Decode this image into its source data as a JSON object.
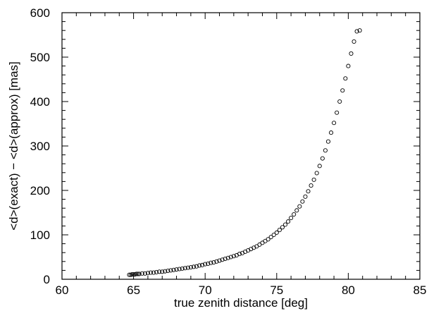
{
  "chart_data": {
    "type": "scatter",
    "title": "",
    "xlabel": "true zenith distance [deg]",
    "ylabel": "<d>(exact) − <d>(approx) [mas]",
    "xlim": [
      60,
      85
    ],
    "ylim": [
      0,
      600
    ],
    "x_ticks": [
      "60",
      "65",
      "70",
      "75",
      "80",
      "85"
    ],
    "y_ticks": [
      "0",
      "100",
      "200",
      "300",
      "400",
      "500",
      "600"
    ],
    "grid": false,
    "legend": "none",
    "marker": "open-circle",
    "color": "#000000",
    "series": [
      {
        "x": [
          64.7,
          64.8,
          64.9,
          65.0,
          65.1,
          65.2,
          65.3,
          65.4,
          65.6,
          65.8,
          66.0,
          66.2,
          66.4,
          66.6,
          66.8,
          67.0,
          67.2,
          67.4,
          67.6,
          67.8,
          68.0,
          68.2,
          68.4,
          68.6,
          68.8,
          69.0,
          69.2,
          69.4,
          69.6,
          69.8,
          70.0,
          70.2,
          70.4,
          70.6,
          70.8,
          71.0,
          71.2,
          71.4,
          71.6,
          71.8,
          72.0,
          72.2,
          72.4,
          72.6,
          72.8,
          73.0,
          73.2,
          73.4,
          73.6,
          73.8,
          74.0,
          74.2,
          74.4,
          74.6,
          74.8,
          75.0,
          75.2,
          75.4,
          75.6,
          75.8,
          76.0,
          76.2,
          76.4,
          76.6,
          76.8,
          77.0,
          77.2,
          77.4,
          77.6,
          77.8,
          78.0,
          78.2,
          78.4,
          78.6,
          78.8,
          79.0,
          79.2,
          79.4,
          79.6,
          79.8,
          80.0,
          80.2,
          80.4,
          80.6,
          80.8
        ],
        "y": [
          10,
          10,
          11,
          11,
          11,
          12,
          12,
          12,
          13,
          13,
          14,
          15,
          15,
          16,
          17,
          17,
          18,
          19,
          20,
          21,
          22,
          23,
          24,
          25,
          26,
          27,
          28,
          29,
          31,
          32,
          34,
          35,
          37,
          38,
          40,
          42,
          44,
          46,
          48,
          50,
          52,
          54,
          57,
          59,
          62,
          65,
          68,
          71,
          74,
          78,
          82,
          86,
          90,
          95,
          100,
          105,
          111,
          117,
          123,
          130,
          138,
          146,
          155,
          164,
          175,
          186,
          198,
          211,
          224,
          239,
          255,
          272,
          290,
          310,
          330,
          352,
          375,
          400,
          425,
          452,
          480,
          508,
          535,
          558,
          560
        ]
      }
    ]
  }
}
